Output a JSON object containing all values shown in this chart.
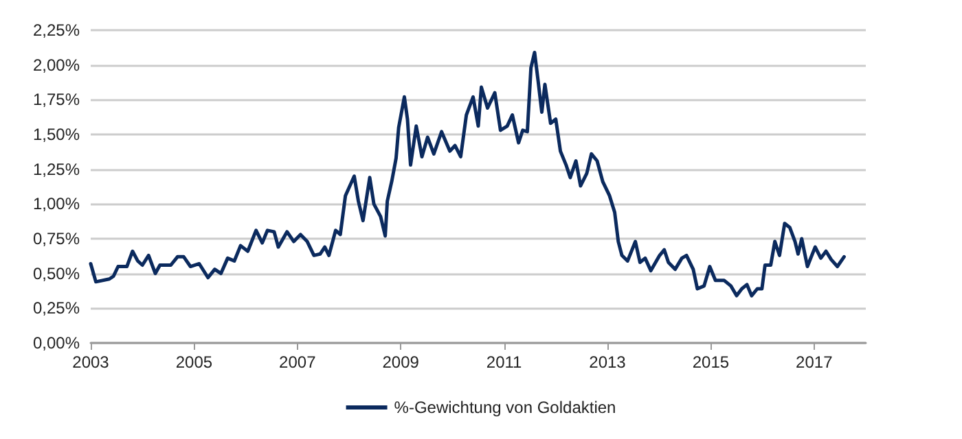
{
  "chart_data": {
    "type": "line",
    "legend": "bottom",
    "grid": "y",
    "line_style": "solid",
    "xlim": [
      2003,
      2018
    ],
    "xticks": [
      2003,
      2005,
      2007,
      2009,
      2011,
      2013,
      2015,
      2017
    ],
    "ylim": [
      0,
      2.25
    ],
    "yticks": [
      {
        "value": 0,
        "label": "0,00%"
      },
      {
        "value": 0.25,
        "label": "0,25%"
      },
      {
        "value": 0.5,
        "label": "0,50%"
      },
      {
        "value": 0.75,
        "label": "0,75%"
      },
      {
        "value": 1,
        "label": "1,00%"
      },
      {
        "value": 1.25,
        "label": "1,25%"
      },
      {
        "value": 1.5,
        "label": "1,50%"
      },
      {
        "value": 1.75,
        "label": "1,75%"
      },
      {
        "value": 2,
        "label": "2,00%"
      },
      {
        "value": 2.25,
        "label": "2,25%"
      }
    ],
    "series": [
      {
        "name": "%-Gewichtung von Goldaktien",
        "color": "#0b2a5e",
        "x": [
          2003.0,
          2003.1,
          2003.36,
          2003.44,
          2003.53,
          2003.7,
          2003.81,
          2003.91,
          2004.0,
          2004.12,
          2004.25,
          2004.34,
          2004.55,
          2004.68,
          2004.8,
          2004.93,
          2005.1,
          2005.27,
          2005.4,
          2005.52,
          2005.65,
          2005.78,
          2005.9,
          2006.04,
          2006.2,
          2006.32,
          2006.42,
          2006.55,
          2006.63,
          2006.8,
          2006.93,
          2007.06,
          2007.19,
          2007.32,
          2007.44,
          2007.53,
          2007.61,
          2007.74,
          2007.83,
          2007.93,
          2008.1,
          2008.18,
          2008.27,
          2008.4,
          2008.48,
          2008.61,
          2008.7,
          2008.74,
          2008.83,
          2008.91,
          2008.96,
          2009.07,
          2009.13,
          2009.19,
          2009.3,
          2009.41,
          2009.52,
          2009.64,
          2009.79,
          2009.95,
          2010.05,
          2010.16,
          2010.27,
          2010.4,
          2010.5,
          2010.56,
          2010.68,
          2010.82,
          2010.93,
          2011.06,
          2011.16,
          2011.28,
          2011.36,
          2011.45,
          2011.52,
          2011.59,
          2011.66,
          2011.73,
          2011.79,
          2011.9,
          2012.0,
          2012.09,
          2012.2,
          2012.28,
          2012.39,
          2012.48,
          2012.6,
          2012.69,
          2012.8,
          2012.91,
          2013.04,
          2013.14,
          2013.21,
          2013.28,
          2013.39,
          2013.54,
          2013.63,
          2013.73,
          2013.84,
          2014.01,
          2014.1,
          2014.18,
          2014.31,
          2014.44,
          2014.53,
          2014.66,
          2014.74,
          2014.87,
          2014.98,
          2015.09,
          2015.26,
          2015.39,
          2015.5,
          2015.6,
          2015.7,
          2015.79,
          2015.9,
          2015.99,
          2016.05,
          2016.16,
          2016.24,
          2016.33,
          2016.43,
          2016.53,
          2016.63,
          2016.69,
          2016.76,
          2016.87,
          2017.02,
          2017.13,
          2017.23,
          2017.33,
          2017.45,
          2017.58
        ],
        "values": [
          0.57,
          0.44,
          0.46,
          0.48,
          0.55,
          0.55,
          0.66,
          0.59,
          0.56,
          0.63,
          0.5,
          0.56,
          0.56,
          0.62,
          0.62,
          0.55,
          0.57,
          0.47,
          0.53,
          0.5,
          0.61,
          0.59,
          0.7,
          0.66,
          0.81,
          0.72,
          0.81,
          0.8,
          0.69,
          0.8,
          0.73,
          0.78,
          0.73,
          0.63,
          0.64,
          0.69,
          0.63,
          0.81,
          0.78,
          1.06,
          1.2,
          1.02,
          0.88,
          1.19,
          1.0,
          0.91,
          0.77,
          1.02,
          1.17,
          1.33,
          1.55,
          1.77,
          1.61,
          1.28,
          1.56,
          1.34,
          1.48,
          1.36,
          1.52,
          1.38,
          1.42,
          1.34,
          1.64,
          1.77,
          1.56,
          1.84,
          1.69,
          1.8,
          1.53,
          1.56,
          1.64,
          1.44,
          1.53,
          1.52,
          1.98,
          2.09,
          1.88,
          1.66,
          1.86,
          1.58,
          1.61,
          1.38,
          1.28,
          1.19,
          1.31,
          1.13,
          1.22,
          1.36,
          1.31,
          1.16,
          1.06,
          0.94,
          0.73,
          0.63,
          0.59,
          0.73,
          0.58,
          0.61,
          0.52,
          0.63,
          0.67,
          0.58,
          0.53,
          0.61,
          0.63,
          0.53,
          0.39,
          0.41,
          0.55,
          0.45,
          0.45,
          0.41,
          0.34,
          0.39,
          0.42,
          0.34,
          0.39,
          0.39,
          0.56,
          0.56,
          0.73,
          0.63,
          0.86,
          0.83,
          0.73,
          0.64,
          0.75,
          0.55,
          0.69,
          0.61,
          0.66,
          0.6,
          0.55,
          0.62
        ]
      }
    ]
  }
}
